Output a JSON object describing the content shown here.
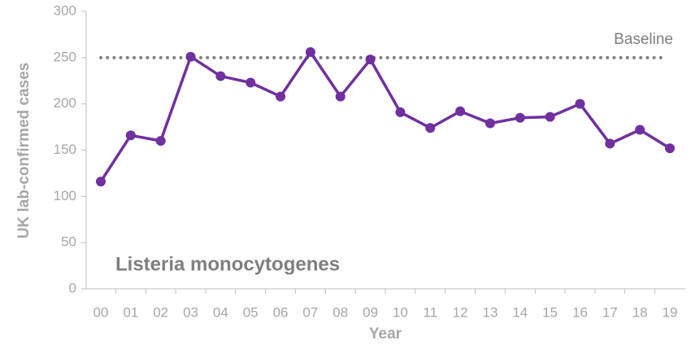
{
  "chart_data": {
    "type": "line",
    "categories": [
      "00",
      "01",
      "02",
      "03",
      "04",
      "05",
      "06",
      "07",
      "08",
      "09",
      "10",
      "11",
      "12",
      "13",
      "14",
      "15",
      "16",
      "17",
      "18",
      "19"
    ],
    "series": [
      {
        "name": "Listeria monocytogenes",
        "color": "#7030a0",
        "values": [
          116,
          166,
          160,
          251,
          230,
          223,
          208,
          256,
          208,
          248,
          191,
          174,
          192,
          179,
          185,
          186,
          200,
          157,
          172,
          152
        ]
      }
    ],
    "ylim": [
      0,
      300
    ],
    "yticks": [
      0,
      50,
      100,
      150,
      200,
      250,
      300
    ],
    "y_label": "UK lab-confirmed cases",
    "x_label": "Year",
    "baseline": {
      "value": 250,
      "label": "Baseline",
      "color": "#7f7f7f"
    }
  }
}
